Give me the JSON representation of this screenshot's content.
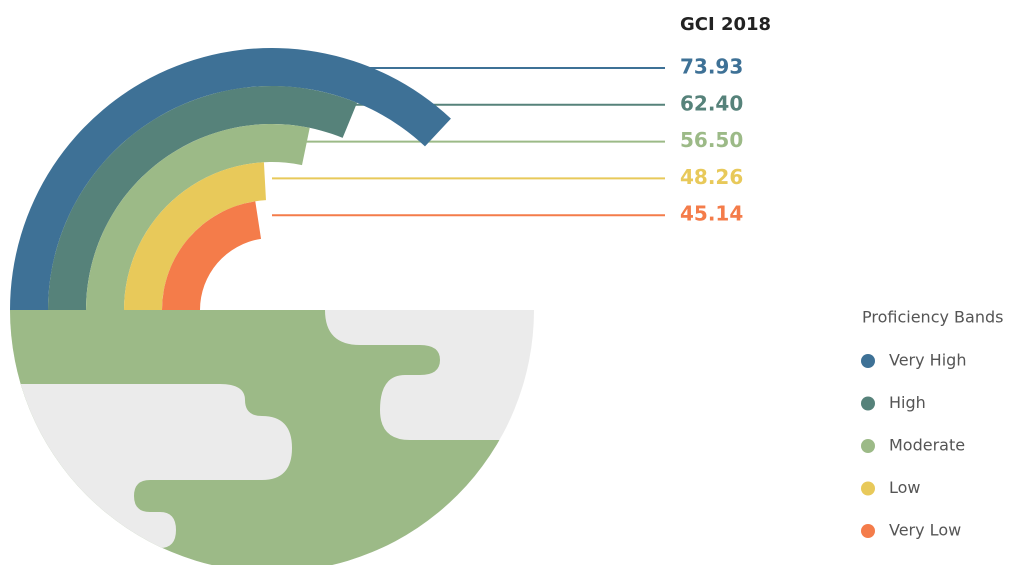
{
  "chart_data": {
    "type": "radial_bar",
    "title": "GCI 2018",
    "legend_title": "Proficiency Bands",
    "categories": [
      "Very High",
      "High",
      "Moderate",
      "Low",
      "Very Low"
    ],
    "values": [
      73.93,
      62.4,
      56.5,
      48.26,
      45.14
    ],
    "value_labels": [
      "73.93",
      "62.40",
      "56.50",
      "48.26",
      "45.14"
    ],
    "colors": [
      "#3e7196",
      "#56827a",
      "#9cba87",
      "#e8c95a",
      "#f47c4a"
    ],
    "ylim": [
      0,
      100
    ]
  }
}
